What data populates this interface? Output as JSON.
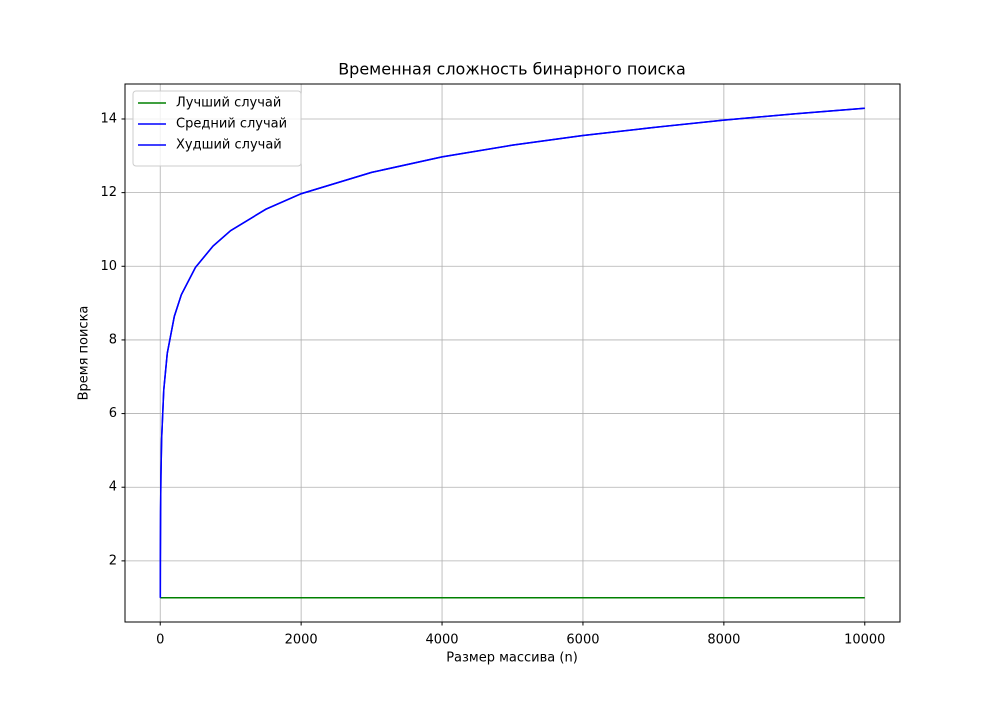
{
  "chart_data": {
    "type": "line",
    "title": "Временная сложность бинарного поиска",
    "xlabel": "Размер массива (n)",
    "ylabel": "Время поиска",
    "x": [
      1,
      2,
      5,
      10,
      20,
      50,
      100,
      200,
      300,
      500,
      750,
      1000,
      1500,
      2000,
      3000,
      4000,
      5000,
      6000,
      7000,
      8000,
      9000,
      10000
    ],
    "series": [
      {
        "name": "Лучший случай",
        "color": "#008000",
        "values": [
          1,
          1,
          1,
          1,
          1,
          1,
          1,
          1,
          1,
          1,
          1,
          1,
          1,
          1,
          1,
          1,
          1,
          1,
          1,
          1,
          1,
          1
        ]
      },
      {
        "name": "Средний случай",
        "color": "#0000ff",
        "values": [
          1,
          2,
          3.32,
          4.32,
          5.32,
          6.64,
          7.64,
          8.64,
          9.23,
          9.97,
          10.55,
          10.97,
          11.55,
          11.97,
          12.55,
          12.97,
          13.29,
          13.55,
          13.77,
          13.97,
          14.14,
          14.29
        ]
      },
      {
        "name": "Худший случай",
        "color": "#0000ff",
        "values": [
          1,
          2,
          3.32,
          4.32,
          5.32,
          6.64,
          7.64,
          8.64,
          9.23,
          9.97,
          10.55,
          10.97,
          11.55,
          11.97,
          12.55,
          12.97,
          13.29,
          13.55,
          13.77,
          13.97,
          14.14,
          14.29
        ]
      }
    ],
    "xlim": [
      -500,
      10500
    ],
    "xticks": [
      0,
      2000,
      4000,
      6000,
      8000,
      10000
    ],
    "ylim": [
      0.34,
      14.95
    ],
    "yticks": [
      2,
      4,
      6,
      8,
      10,
      12,
      14
    ],
    "grid": true,
    "legend": "upper-left"
  }
}
